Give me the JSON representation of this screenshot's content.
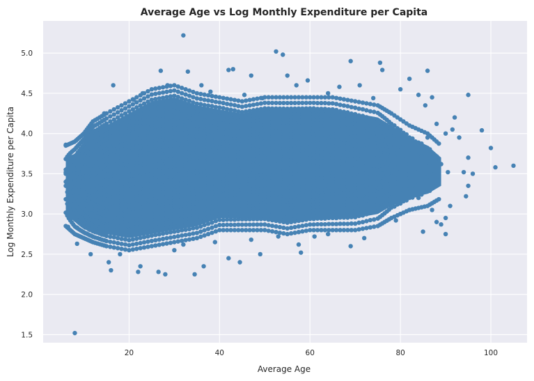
{
  "chart_data": {
    "type": "scatter",
    "title": "Average Age vs Log Monthly Expenditure per Capita",
    "xlabel": "Average Age",
    "ylabel": "Log Monthly Expenditure per Capita",
    "xlim": [
      1,
      108
    ],
    "ylim": [
      1.4,
      5.4
    ],
    "x_ticks": [
      20,
      40,
      60,
      80,
      100
    ],
    "y_ticks": [
      1.5,
      2.0,
      2.5,
      3.0,
      3.5,
      4.0,
      4.5,
      5.0
    ],
    "x_tick_labels": [
      "20",
      "40",
      "60",
      "80",
      "100"
    ],
    "y_tick_labels": [
      "1.5",
      "2.0",
      "2.5",
      "3.0",
      "3.5",
      "4.0",
      "4.5",
      "5.0"
    ],
    "grid": true,
    "colors": {
      "point": "#4682b4",
      "background": "#eaeaf2",
      "grid": "#ffffff"
    },
    "bands": [
      {
        "x": 6,
        "y_min": 2.85,
        "y_max": 3.85,
        "count": 6
      },
      {
        "x": 8,
        "y_min": 2.75,
        "y_max": 3.9,
        "count": 12
      },
      {
        "x": 10,
        "y_min": 2.7,
        "y_max": 4.0,
        "count": 18
      },
      {
        "x": 12,
        "y_min": 2.65,
        "y_max": 4.15,
        "count": 22
      },
      {
        "x": 15,
        "y_min": 2.6,
        "y_max": 4.25,
        "count": 26
      },
      {
        "x": 20,
        "y_min": 2.55,
        "y_max": 4.4,
        "count": 30
      },
      {
        "x": 25,
        "y_min": 2.6,
        "y_max": 4.55,
        "count": 30
      },
      {
        "x": 30,
        "y_min": 2.65,
        "y_max": 4.6,
        "count": 30
      },
      {
        "x": 35,
        "y_min": 2.7,
        "y_max": 4.5,
        "count": 28
      },
      {
        "x": 40,
        "y_min": 2.8,
        "y_max": 4.45,
        "count": 26
      },
      {
        "x": 45,
        "y_min": 2.8,
        "y_max": 4.4,
        "count": 24
      },
      {
        "x": 50,
        "y_min": 2.8,
        "y_max": 4.45,
        "count": 24
      },
      {
        "x": 55,
        "y_min": 2.75,
        "y_max": 4.45,
        "count": 24
      },
      {
        "x": 60,
        "y_min": 2.8,
        "y_max": 4.45,
        "count": 24
      },
      {
        "x": 65,
        "y_min": 2.8,
        "y_max": 4.45,
        "count": 22
      },
      {
        "x": 70,
        "y_min": 2.8,
        "y_max": 4.4,
        "count": 20
      },
      {
        "x": 75,
        "y_min": 2.85,
        "y_max": 4.35,
        "count": 16
      },
      {
        "x": 78,
        "y_min": 2.95,
        "y_max": 4.25,
        "count": 10
      },
      {
        "x": 82,
        "y_min": 3.05,
        "y_max": 4.1,
        "count": 7
      },
      {
        "x": 86,
        "y_min": 3.1,
        "y_max": 4.0,
        "count": 5
      },
      {
        "x": 89,
        "y_min": 3.2,
        "y_max": 3.85,
        "count": 3
      }
    ],
    "points": [
      [
        8.0,
        1.52
      ],
      [
        32.0,
        5.22
      ],
      [
        52.5,
        5.02
      ],
      [
        54.0,
        4.98
      ],
      [
        69.0,
        4.9
      ],
      [
        75.5,
        4.88
      ],
      [
        76.0,
        4.79
      ],
      [
        86.0,
        4.78
      ],
      [
        42.0,
        4.79
      ],
      [
        43.0,
        4.8
      ],
      [
        33.0,
        4.77
      ],
      [
        47.0,
        4.72
      ],
      [
        55.0,
        4.72
      ],
      [
        82.0,
        4.68
      ],
      [
        16.5,
        4.6
      ],
      [
        95.0,
        4.48
      ],
      [
        98.0,
        4.04
      ],
      [
        100.0,
        3.82
      ],
      [
        101.0,
        3.58
      ],
      [
        105.0,
        3.6
      ],
      [
        95.0,
        3.7
      ],
      [
        93.0,
        3.95
      ],
      [
        92.0,
        4.2
      ],
      [
        94.0,
        3.52
      ],
      [
        94.5,
        3.22
      ],
      [
        95.0,
        3.35
      ],
      [
        96.0,
        3.5
      ],
      [
        91.0,
        3.1
      ],
      [
        90.0,
        2.95
      ],
      [
        90.0,
        2.75
      ],
      [
        88.0,
        2.9
      ],
      [
        89.0,
        2.87
      ],
      [
        85.0,
        2.78
      ],
      [
        34.5,
        2.25
      ],
      [
        36.5,
        2.35
      ],
      [
        28.0,
        2.25
      ],
      [
        26.5,
        2.28
      ],
      [
        22.0,
        2.28
      ],
      [
        22.5,
        2.35
      ],
      [
        16.0,
        2.3
      ],
      [
        15.5,
        2.4
      ],
      [
        18.0,
        2.5
      ],
      [
        42.0,
        2.45
      ],
      [
        44.5,
        2.4
      ],
      [
        49.0,
        2.5
      ],
      [
        58.0,
        2.52
      ],
      [
        57.5,
        2.62
      ],
      [
        69.0,
        2.6
      ],
      [
        72.0,
        2.7
      ],
      [
        6.0,
        3.86
      ],
      [
        6.0,
        3.5
      ],
      [
        6.0,
        3.4
      ],
      [
        6.0,
        3.55
      ],
      [
        8.5,
        2.83
      ],
      [
        6.5,
        2.84
      ],
      [
        8.5,
        2.63
      ],
      [
        11.5,
        2.5
      ],
      [
        14.5,
        4.25
      ],
      [
        21.0,
        4.42
      ],
      [
        23.0,
        4.5
      ],
      [
        27.0,
        4.78
      ],
      [
        28.5,
        4.6
      ],
      [
        36.0,
        4.6
      ],
      [
        38.0,
        4.52
      ],
      [
        45.5,
        4.48
      ],
      [
        49.5,
        4.44
      ],
      [
        57.0,
        4.6
      ],
      [
        59.5,
        4.66
      ],
      [
        64.0,
        4.5
      ],
      [
        66.5,
        4.58
      ],
      [
        71.0,
        4.6
      ],
      [
        74.0,
        4.44
      ],
      [
        80.0,
        4.55
      ],
      [
        84.0,
        4.48
      ],
      [
        85.5,
        4.35
      ],
      [
        87.0,
        4.45
      ],
      [
        88.0,
        4.12
      ],
      [
        90.0,
        4.0
      ],
      [
        91.5,
        4.05
      ],
      [
        87.0,
        3.75
      ],
      [
        89.0,
        3.62
      ],
      [
        90.5,
        3.52
      ],
      [
        86.0,
        3.95
      ],
      [
        84.0,
        3.2
      ],
      [
        80.0,
        3.0
      ],
      [
        82.0,
        3.05
      ],
      [
        87.0,
        3.05
      ],
      [
        79.0,
        2.92
      ],
      [
        61.0,
        2.72
      ],
      [
        64.0,
        2.75
      ],
      [
        30.0,
        2.55
      ],
      [
        32.0,
        2.62
      ],
      [
        39.0,
        2.65
      ],
      [
        47.0,
        2.68
      ],
      [
        53.0,
        2.72
      ]
    ]
  }
}
